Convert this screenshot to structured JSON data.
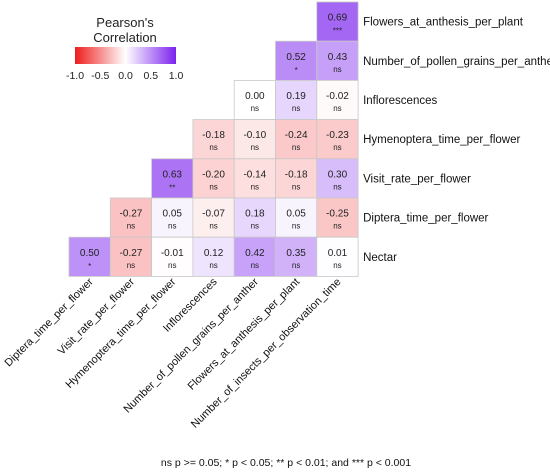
{
  "chart_data": {
    "type": "heatmap",
    "legend": {
      "title_lines": [
        "Pearson's",
        "Correlation"
      ],
      "ticks": [
        "-1.0",
        "-0.5",
        "0.0",
        "0.5",
        "1.0"
      ],
      "tick_values": [
        -1.0,
        -0.5,
        0.0,
        0.5,
        1.0
      ],
      "range": [
        -1.0,
        1.0
      ],
      "colors": {
        "low": "#ee1c1c",
        "mid": "#ffffff",
        "high": "#7b22ee"
      },
      "placement": "top-left"
    },
    "rows": [
      "Flowers_at_anthesis_per_plant",
      "Number_of_pollen_grains_per_anther",
      "Inflorescences",
      "Hymenoptera_time_per_flower",
      "Visit_rate_per_flower",
      "Diptera_time_per_flower",
      "Nectar"
    ],
    "columns": [
      "Diptera_time_per_flower",
      "Visit_rate_per_flower",
      "Hymenoptera_time_per_flower",
      "Inflorescences",
      "Number_of_pollen_grains_per_anther",
      "Flowers_at_anthesis_per_plant",
      "Number_of_insects_per_observation_time"
    ],
    "values": [
      [
        null,
        null,
        null,
        null,
        null,
        null,
        0.69
      ],
      [
        null,
        null,
        null,
        null,
        null,
        0.52,
        0.43
      ],
      [
        null,
        null,
        null,
        null,
        0.0,
        0.19,
        -0.02
      ],
      [
        null,
        null,
        null,
        -0.18,
        -0.1,
        -0.24,
        -0.23
      ],
      [
        null,
        null,
        0.63,
        -0.2,
        -0.14,
        -0.18,
        0.3
      ],
      [
        null,
        -0.27,
        0.05,
        -0.07,
        0.18,
        0.05,
        -0.25
      ],
      [
        0.5,
        -0.27,
        -0.01,
        0.12,
        0.42,
        0.35,
        0.01
      ]
    ],
    "labels": [
      [
        null,
        null,
        null,
        null,
        null,
        null,
        "0.69"
      ],
      [
        null,
        null,
        null,
        null,
        null,
        "0.52",
        "0.43"
      ],
      [
        null,
        null,
        null,
        null,
        "0.00",
        "0.19",
        "-0.02"
      ],
      [
        null,
        null,
        null,
        "-0.18",
        "-0.10",
        "-0.24",
        "-0.23"
      ],
      [
        null,
        null,
        "0.63",
        "-0.20",
        "-0.14",
        "-0.18",
        "0.30"
      ],
      [
        null,
        "-0.27",
        "0.05",
        "-0.07",
        "0.18",
        "0.05",
        "-0.25"
      ],
      [
        "0.50",
        "-0.27",
        "-0.01",
        "0.12",
        "0.42",
        "0.35",
        "0.01"
      ]
    ],
    "significance": [
      [
        null,
        null,
        null,
        null,
        null,
        null,
        "***"
      ],
      [
        null,
        null,
        null,
        null,
        null,
        "*",
        "ns"
      ],
      [
        null,
        null,
        null,
        null,
        "ns",
        "ns",
        "ns"
      ],
      [
        null,
        null,
        null,
        "ns",
        "ns",
        "ns",
        "ns"
      ],
      [
        null,
        null,
        "**",
        "ns",
        "ns",
        "ns",
        "ns"
      ],
      [
        null,
        "ns",
        "ns",
        "ns",
        "ns",
        "ns",
        "ns"
      ],
      [
        "*",
        "ns",
        "ns",
        "ns",
        "ns",
        "ns",
        "ns"
      ]
    ],
    "footnote": "ns p >= 0.05; * p < 0.05; ** p < 0.01; and *** p < 0.001"
  }
}
